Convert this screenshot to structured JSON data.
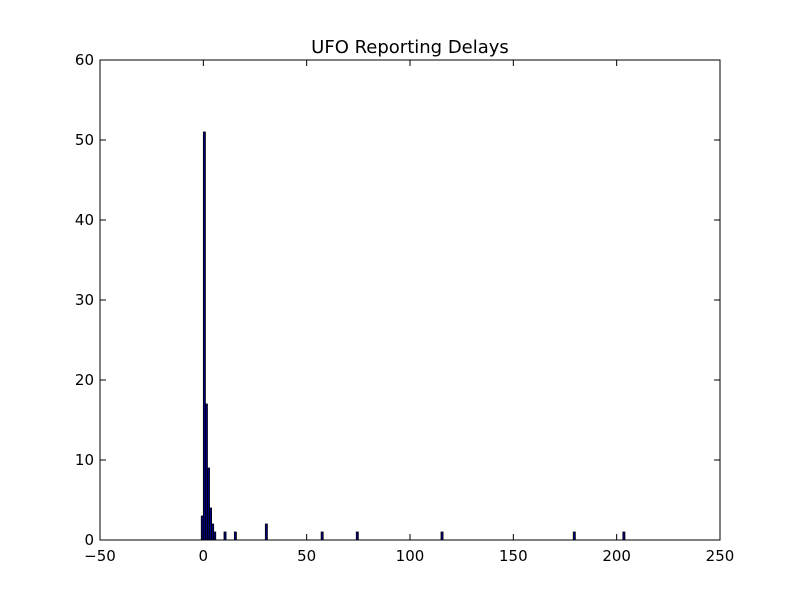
{
  "chart_data": {
    "type": "bar",
    "title": "UFO Reporting Delays",
    "xlabel": "",
    "ylabel": "",
    "xlim": [
      -50,
      250
    ],
    "ylim": [
      0,
      60
    ],
    "xticks": [
      -50,
      0,
      50,
      100,
      150,
      200,
      250
    ],
    "yticks": [
      0,
      10,
      20,
      30,
      40,
      50,
      60
    ],
    "bar_width": 1,
    "bar_color": "#00007f",
    "bar_edge_color": "#000000",
    "grid": false,
    "legend": "none",
    "bars": [
      {
        "x": -1,
        "value": 3
      },
      {
        "x": 0,
        "value": 51
      },
      {
        "x": 1,
        "value": 17
      },
      {
        "x": 2,
        "value": 9
      },
      {
        "x": 3,
        "value": 4
      },
      {
        "x": 4,
        "value": 2
      },
      {
        "x": 5,
        "value": 1
      },
      {
        "x": 10,
        "value": 1
      },
      {
        "x": 15,
        "value": 1
      },
      {
        "x": 30,
        "value": 2
      },
      {
        "x": 57,
        "value": 1
      },
      {
        "x": 74,
        "value": 1
      },
      {
        "x": 115,
        "value": 1
      },
      {
        "x": 179,
        "value": 1
      },
      {
        "x": 203,
        "value": 1
      }
    ]
  }
}
